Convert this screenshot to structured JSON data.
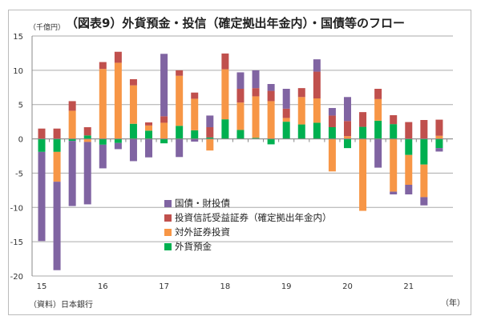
{
  "chart_data": {
    "type": "bar",
    "stacked": true,
    "title": "（図表9）外貨預金・投信（確定拠出年金内）・国債等のフロー",
    "ylabel": "（千億円）",
    "xlabel": "（年）",
    "source": "（資料）日本銀行",
    "ylim": [
      -20,
      15
    ],
    "yticks": [
      15,
      10,
      5,
      0,
      -5,
      -10,
      -15,
      -20
    ],
    "grid": true,
    "legend_position": "center-left",
    "x_tick_labels": [
      "15",
      "16",
      "17",
      "18",
      "19",
      "20",
      "21"
    ],
    "categories": [
      "2015Q1",
      "2015Q2",
      "2015Q3",
      "2015Q4",
      "2016Q1",
      "2016Q2",
      "2016Q3",
      "2016Q4",
      "2017Q1",
      "2017Q2",
      "2017Q3",
      "2017Q4",
      "2018Q1",
      "2018Q2",
      "2018Q3",
      "2018Q4",
      "2019Q1",
      "2019Q2",
      "2019Q3",
      "2019Q4",
      "2020Q1",
      "2020Q2",
      "2020Q3",
      "2020Q4",
      "2021Q1",
      "2021Q2",
      "2021Q3"
    ],
    "series": [
      {
        "name": "外貨預金",
        "color": "#00b050",
        "values": [
          -1.9,
          -1.9,
          -0.3,
          0.5,
          -0.85,
          -0.6,
          2.2,
          1.2,
          -0.65,
          1.9,
          1.25,
          0.2,
          2.85,
          1.3,
          0.15,
          -0.8,
          2.5,
          2.1,
          2.35,
          1.7,
          -1.35,
          1.75,
          2.65,
          2.15,
          -2.35,
          -3.75,
          -1.35
        ]
      },
      {
        "name": "対外証券投資",
        "color": "#f79646",
        "values": [
          0,
          -4.35,
          4.1,
          -0.45,
          10.2,
          11.1,
          5.6,
          0.75,
          2.35,
          7.3,
          4.6,
          -1.7,
          7.3,
          4.0,
          6.05,
          5.5,
          0.55,
          4.0,
          3.55,
          -4.75,
          0.4,
          -10.5,
          3.15,
          -7.7,
          -4.35,
          -4.75,
          0.45
        ]
      },
      {
        "name": "投資信託受益証券（確定拠出年金内）",
        "color": "#c0504d",
        "values": [
          1.5,
          1.5,
          1.4,
          1.2,
          1.0,
          1.6,
          0.9,
          0.45,
          0.95,
          0.8,
          0.9,
          1.5,
          2.3,
          2.0,
          1.2,
          1.5,
          1.35,
          1.3,
          3.9,
          1.7,
          2.2,
          2.15,
          1.5,
          1.3,
          2.45,
          2.75,
          2.35
        ]
      },
      {
        "name": "国債・財投債",
        "color": "#8064a2",
        "values": [
          -13.0,
          -12.9,
          -9.5,
          -9.1,
          -3.45,
          -0.9,
          -3.25,
          -2.7,
          9.1,
          -2.65,
          -0.4,
          1.7,
          0,
          2.4,
          2.6,
          1.0,
          2.9,
          0,
          1.8,
          1.1,
          3.5,
          0,
          -4.2,
          -0.4,
          -1.4,
          -1.2,
          -0.5
        ]
      }
    ]
  }
}
